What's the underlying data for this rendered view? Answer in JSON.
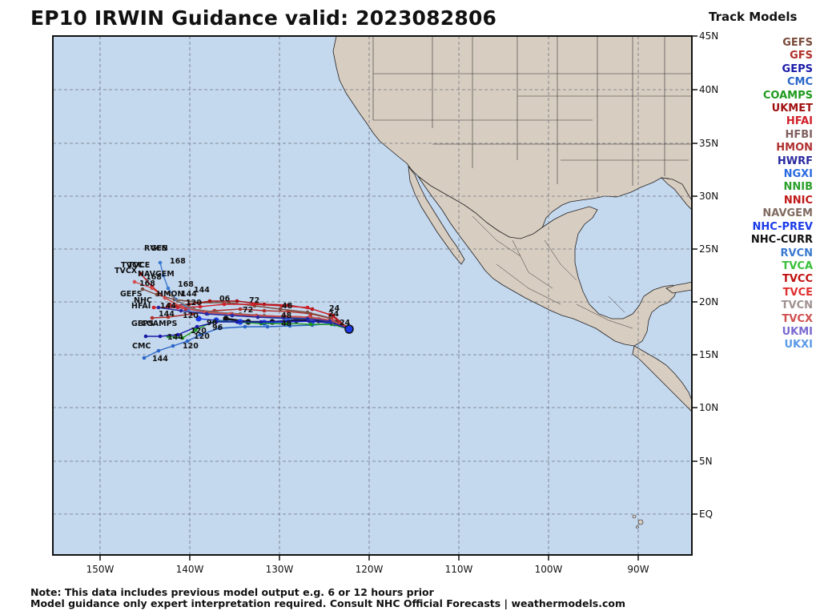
{
  "title": "EP10 IRWIN Guidance valid: 2023082806",
  "legend": {
    "title": "Track Models",
    "items": [
      {
        "label": "GEFS",
        "color": "#7a4a3a"
      },
      {
        "label": "GFS",
        "color": "#b0302a"
      },
      {
        "label": "GEPS",
        "color": "#1a1aa8"
      },
      {
        "label": "CMC",
        "color": "#2a66c8"
      },
      {
        "label": "COAMPS",
        "color": "#1e9a1e"
      },
      {
        "label": "UKMET",
        "color": "#a01010"
      },
      {
        "label": "HFAI",
        "color": "#d0202a"
      },
      {
        "label": "HFBI",
        "color": "#806060"
      },
      {
        "label": "HMON",
        "color": "#b03030"
      },
      {
        "label": "HWRF",
        "color": "#2a2aa0"
      },
      {
        "label": "NGXI",
        "color": "#2a6ae0"
      },
      {
        "label": "NNIB",
        "color": "#2aa02a"
      },
      {
        "label": "NNIC",
        "color": "#c01818"
      },
      {
        "label": "NAVGEM",
        "color": "#806a60"
      },
      {
        "label": "NHC-PREV",
        "color": "#1a3ae8"
      },
      {
        "label": "NHC-CURR",
        "color": "#111111"
      },
      {
        "label": "RVCN",
        "color": "#3a7ad0"
      },
      {
        "label": "TVCA",
        "color": "#3ac03a"
      },
      {
        "label": "TVCC",
        "color": "#c01010"
      },
      {
        "label": "TVCE",
        "color": "#e03030"
      },
      {
        "label": "TVCN",
        "color": "#a09090"
      },
      {
        "label": "TVCX",
        "color": "#d05050"
      },
      {
        "label": "UKMI",
        "color": "#7a6ad0"
      },
      {
        "label": "UKXI",
        "color": "#5a9ae8"
      }
    ]
  },
  "axes": {
    "lon_labels": [
      "150W",
      "140W",
      "130W",
      "120W",
      "110W",
      "100W",
      "90W"
    ],
    "lat_labels": [
      "45N",
      "40N",
      "35N",
      "30N",
      "25N",
      "20N",
      "15N",
      "10N",
      "5N",
      "EQ"
    ]
  },
  "map_labels": [
    {
      "text": "RVCN",
      "color": "#3a7ad0"
    },
    {
      "text": "GFS",
      "color": "#3a7ad0"
    },
    {
      "text": "168",
      "color": "#111111"
    },
    {
      "text": "TVCC",
      "color": "#c01010"
    },
    {
      "text": "TVCE",
      "color": "#e03030"
    },
    {
      "text": "TVCX",
      "color": "#d05050"
    },
    {
      "text": "NAVGEM",
      "color": "#806a60"
    },
    {
      "text": "168",
      "color": "#111111"
    },
    {
      "text": "168",
      "color": "#111111"
    },
    {
      "text": "168",
      "color": "#111111"
    },
    {
      "text": "144",
      "color": "#111111"
    },
    {
      "text": "GEFS",
      "color": "#7a4a3a"
    },
    {
      "text": "HMON",
      "color": "#b03030"
    },
    {
      "text": "144",
      "color": "#111111"
    },
    {
      "text": "NHC",
      "color": "#1a3ae8"
    },
    {
      "text": "HFAI",
      "color": "#d0202a"
    },
    {
      "text": "144",
      "color": "#111111"
    },
    {
      "text": "144",
      "color": "#111111"
    },
    {
      "text": "120",
      "color": "#111111"
    },
    {
      "text": "120",
      "color": "#111111"
    },
    {
      "text": "GEPS",
      "color": "#1a1aa8"
    },
    {
      "text": "COAMPS",
      "color": "#1e9a1e"
    },
    {
      "text": "96",
      "color": "#111111"
    },
    {
      "text": "96",
      "color": "#111111"
    },
    {
      "text": "120",
      "color": "#111111"
    },
    {
      "text": "120",
      "color": "#111111"
    },
    {
      "text": "144",
      "color": "#111111"
    },
    {
      "text": "CMC",
      "color": "#2a66c8"
    },
    {
      "text": "120",
      "color": "#111111"
    },
    {
      "text": "144",
      "color": "#111111"
    },
    {
      "text": "72",
      "color": "#111111"
    },
    {
      "text": "72",
      "color": "#111111"
    },
    {
      "text": "48",
      "color": "#111111"
    },
    {
      "text": "48",
      "color": "#111111"
    },
    {
      "text": "48",
      "color": "#111111"
    },
    {
      "text": "24",
      "color": "#111111"
    },
    {
      "text": "24",
      "color": "#111111"
    },
    {
      "text": "24",
      "color": "#111111"
    },
    {
      "text": "06",
      "color": "#111111"
    }
  ],
  "notes": [
    "Note: This data includes previous model output e.g. 6 or 12 hours prior",
    "Model guidance only expert interpretation required. Consult NHC Official Forecasts | weathermodels.com"
  ]
}
